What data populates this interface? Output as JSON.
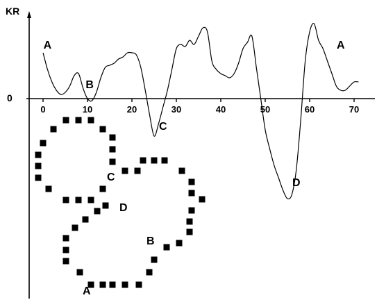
{
  "chart_data": {
    "type": "line",
    "ylabel": "KR",
    "zero_label": "0",
    "xlim": [
      -3,
      76
    ],
    "ylim": [
      -46,
      40
    ],
    "x_ticks": [
      0,
      10,
      20,
      30,
      40,
      50,
      60,
      70
    ],
    "x_tick_labels": [
      "0",
      "10",
      "20",
      "30",
      "40",
      "50",
      "60",
      "70"
    ],
    "series": [
      {
        "x": [
          0,
          1,
          2,
          3,
          4,
          5,
          6,
          7,
          8,
          9,
          10,
          11,
          12,
          13,
          14,
          15,
          16,
          17,
          18,
          19,
          20,
          21,
          22,
          23,
          24,
          25,
          26,
          27,
          28,
          29,
          30,
          31,
          32,
          33,
          34,
          35,
          36,
          37,
          38,
          39,
          40,
          41,
          42,
          43,
          44,
          45,
          46,
          47,
          48,
          49,
          50,
          51,
          52,
          53,
          54,
          55,
          56,
          57,
          58,
          59,
          60,
          61,
          62,
          63,
          64,
          65,
          66,
          67,
          68,
          69,
          70,
          71
        ],
        "y": [
          22,
          14,
          8,
          4,
          2,
          3,
          6,
          11,
          12,
          5,
          0,
          -1,
          3,
          10,
          15,
          16,
          17,
          19,
          20,
          22,
          22,
          21,
          15,
          4,
          -8,
          -18,
          -12,
          -4,
          4,
          14,
          24,
          26,
          25,
          28,
          26,
          30,
          34,
          32,
          18,
          14,
          12,
          11,
          10,
          12,
          17,
          24,
          27,
          30,
          15,
          0,
          -15,
          -24,
          -32,
          -38,
          -44,
          -48,
          -46,
          -34,
          -10,
          18,
          32,
          36,
          28,
          24,
          18,
          12,
          6,
          4,
          4,
          6,
          8,
          8
        ]
      }
    ],
    "annotations": [
      {
        "label": "A",
        "x": 1,
        "y": 24
      },
      {
        "label": "B",
        "x": 10.5,
        "y": 5
      },
      {
        "label": "C",
        "x": 27,
        "y": -15
      },
      {
        "label": "D",
        "x": 57,
        "y": -42
      },
      {
        "label": "A",
        "x": 67,
        "y": 24
      }
    ],
    "contour_labels": [
      "A",
      "B",
      "C",
      "D"
    ]
  }
}
